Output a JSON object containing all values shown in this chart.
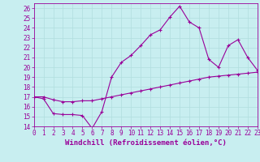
{
  "xlabel": "Windchill (Refroidissement éolien,°C)",
  "ylabel": "",
  "background_color": "#c8eef0",
  "line_color": "#990099",
  "grid_color": "#b0dede",
  "x_values": [
    0,
    1,
    2,
    3,
    4,
    5,
    6,
    7,
    8,
    9,
    10,
    11,
    12,
    13,
    14,
    15,
    16,
    17,
    18,
    19,
    20,
    21,
    22,
    23
  ],
  "y_zigzag": [
    17.0,
    16.8,
    15.3,
    15.2,
    15.2,
    15.1,
    13.8,
    15.5,
    19.0,
    20.5,
    21.2,
    22.2,
    23.3,
    23.8,
    25.1,
    26.2,
    24.6,
    24.0,
    20.8,
    20.0,
    22.2,
    22.8,
    21.0,
    19.7
  ],
  "y_linear": [
    17.0,
    17.0,
    16.7,
    16.5,
    16.5,
    16.6,
    16.6,
    16.8,
    17.0,
    17.2,
    17.4,
    17.6,
    17.8,
    18.0,
    18.2,
    18.4,
    18.6,
    18.8,
    19.0,
    19.1,
    19.2,
    19.3,
    19.4,
    19.5
  ],
  "xlim": [
    0,
    23
  ],
  "ylim": [
    14,
    26.5
  ],
  "yticks": [
    14,
    15,
    16,
    17,
    18,
    19,
    20,
    21,
    22,
    23,
    24,
    25,
    26
  ],
  "xticks": [
    0,
    1,
    2,
    3,
    4,
    5,
    6,
    7,
    8,
    9,
    10,
    11,
    12,
    13,
    14,
    15,
    16,
    17,
    18,
    19,
    20,
    21,
    22,
    23
  ],
  "label_fontsize": 6.5,
  "tick_fontsize": 5.5
}
